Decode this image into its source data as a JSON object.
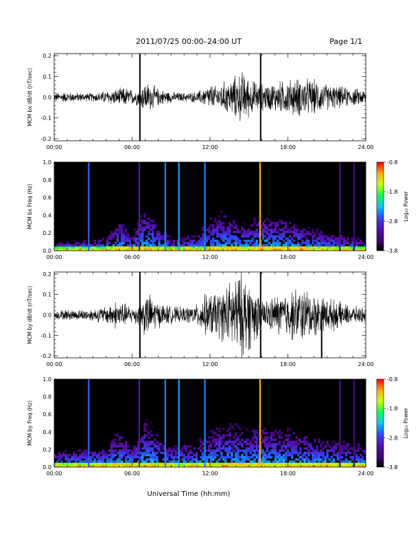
{
  "header": {
    "title": "2011/07/25  00:00–24:00 UT",
    "page": "Page 1/1"
  },
  "xaxis": {
    "label": "Universal Time (hh:mm)",
    "tick_labels": [
      "00:00",
      "06:00",
      "12:00",
      "18:00",
      "24:00"
    ],
    "range_hours": [
      0,
      24
    ]
  },
  "colorbar": {
    "label": "Log₁₀ Power",
    "tick_labels": [
      "-0.8",
      "-1.8",
      "-2.8",
      "-3.8"
    ],
    "range": [
      -3.8,
      -0.8
    ],
    "colormap": [
      "#000000",
      "#3c0070",
      "#5a0eb4",
      "#2850ff",
      "#00c8ff",
      "#00ff50",
      "#c8ff00",
      "#ffb000",
      "#ff0000"
    ]
  },
  "chart_data": [
    {
      "type": "line",
      "name": "bx_dbdt",
      "ylabel": "MCM bx dB/dt (nT/sec)",
      "ylim": [
        -0.21,
        0.21
      ],
      "y_tick_labels": [
        "0.2",
        "0.1",
        "0.0",
        "-0.1",
        "-0.2"
      ],
      "x_hours": [
        0,
        1,
        2,
        3,
        4,
        5,
        5.5,
        6,
        6.5,
        7,
        7.5,
        8,
        9,
        10,
        11,
        11.5,
        12,
        12.5,
        13,
        13.5,
        14,
        14.5,
        15,
        15.5,
        16,
        16.5,
        17,
        18,
        19,
        20,
        21,
        22,
        23,
        24
      ],
      "envelope_amplitude": [
        0.02,
        0.025,
        0.02,
        0.02,
        0.03,
        0.04,
        0.045,
        0.035,
        0.04,
        0.07,
        0.06,
        0.04,
        0.025,
        0.02,
        0.025,
        0.04,
        0.06,
        0.05,
        0.07,
        0.08,
        0.1,
        0.12,
        0.09,
        0.07,
        0.065,
        0.06,
        0.07,
        0.08,
        0.09,
        0.08,
        0.06,
        0.05,
        0.04,
        0.035
      ],
      "spikes": [
        {
          "x_hours": 6.6,
          "y": [
            -0.21,
            0.21
          ]
        },
        {
          "x_hours": 15.9,
          "y": [
            -0.21,
            0.21
          ]
        }
      ]
    },
    {
      "type": "heatmap",
      "name": "bx_freq",
      "ylabel": "MCM bx Freq (Hz)",
      "ylim": [
        0,
        1.0
      ],
      "y_tick_labels": [
        "1.0",
        "0.8",
        "0.6",
        "0.4",
        "0.2",
        "0.0"
      ],
      "zlim": [
        -3.8,
        -0.8
      ],
      "activity_x_hours": [
        0,
        2,
        4,
        5,
        6,
        7,
        9,
        11,
        12,
        13,
        14,
        15,
        16,
        18,
        20,
        22,
        24
      ],
      "activity_top_hz": [
        0.08,
        0.1,
        0.12,
        0.3,
        0.15,
        0.4,
        0.12,
        0.15,
        0.3,
        0.35,
        0.3,
        0.25,
        0.35,
        0.3,
        0.2,
        0.15,
        0.1
      ],
      "vertical_lines": [
        {
          "x_hours": 2.65,
          "power": -2.6
        },
        {
          "x_hours": 6.55,
          "power": -3.0
        },
        {
          "x_hours": 8.55,
          "power": -2.5
        },
        {
          "x_hours": 9.6,
          "power": -2.4
        },
        {
          "x_hours": 11.6,
          "power": -2.5
        },
        {
          "x_hours": 15.85,
          "power": -1.2
        },
        {
          "x_hours": 22.0,
          "power": -3.2
        },
        {
          "x_hours": 23.1,
          "power": -3.3
        }
      ]
    },
    {
      "type": "line",
      "name": "by_dbdt",
      "ylabel": "MCM by dB/dt (nT/sec)",
      "ylim": [
        -0.21,
        0.21
      ],
      "y_tick_labels": [
        "0.2",
        "0.1",
        "0.0",
        "-0.1",
        "-0.2"
      ],
      "x_hours": [
        0,
        1,
        2,
        3,
        4,
        4.5,
        5,
        5.5,
        6,
        6.5,
        7,
        7.5,
        8,
        9,
        10,
        11,
        11.5,
        12,
        12.5,
        13,
        13.5,
        14,
        14.5,
        15,
        15.5,
        16,
        16.5,
        17,
        17.5,
        18,
        19,
        20,
        21,
        22,
        23,
        24
      ],
      "envelope_amplitude": [
        0.02,
        0.025,
        0.025,
        0.03,
        0.04,
        0.06,
        0.07,
        0.05,
        0.04,
        0.05,
        0.1,
        0.09,
        0.06,
        0.04,
        0.035,
        0.05,
        0.09,
        0.1,
        0.11,
        0.12,
        0.15,
        0.19,
        0.2,
        0.17,
        0.12,
        0.08,
        0.07,
        0.09,
        0.1,
        0.11,
        0.13,
        0.1,
        0.08,
        0.06,
        0.04,
        0.035
      ],
      "spikes": [
        {
          "x_hours": 6.6,
          "y": [
            -0.21,
            0.21
          ]
        },
        {
          "x_hours": 15.9,
          "y": [
            -0.21,
            0.21
          ]
        },
        {
          "x_hours": 20.6,
          "y": [
            -0.21,
            0.02
          ]
        }
      ]
    },
    {
      "type": "heatmap",
      "name": "by_freq",
      "ylabel": "MCM by Freq (Hz)",
      "ylim": [
        0,
        1.0
      ],
      "y_tick_labels": [
        "1.0",
        "0.8",
        "0.6",
        "0.4",
        "0.2",
        "0.0"
      ],
      "zlim": [
        -3.8,
        -0.8
      ],
      "activity_x_hours": [
        0,
        2,
        4,
        5,
        6,
        7,
        9,
        11,
        12,
        13,
        14,
        15,
        16,
        18,
        20,
        22,
        24
      ],
      "activity_top_hz": [
        0.15,
        0.18,
        0.2,
        0.35,
        0.2,
        0.45,
        0.2,
        0.25,
        0.35,
        0.4,
        0.4,
        0.35,
        0.4,
        0.35,
        0.3,
        0.25,
        0.2
      ],
      "vertical_lines": [
        {
          "x_hours": 2.65,
          "power": -2.6
        },
        {
          "x_hours": 6.55,
          "power": -3.0
        },
        {
          "x_hours": 8.55,
          "power": -2.5
        },
        {
          "x_hours": 9.6,
          "power": -2.4
        },
        {
          "x_hours": 11.6,
          "power": -2.5
        },
        {
          "x_hours": 15.85,
          "power": -1.2
        },
        {
          "x_hours": 22.0,
          "power": -3.2
        },
        {
          "x_hours": 23.1,
          "power": -3.3
        }
      ]
    }
  ]
}
